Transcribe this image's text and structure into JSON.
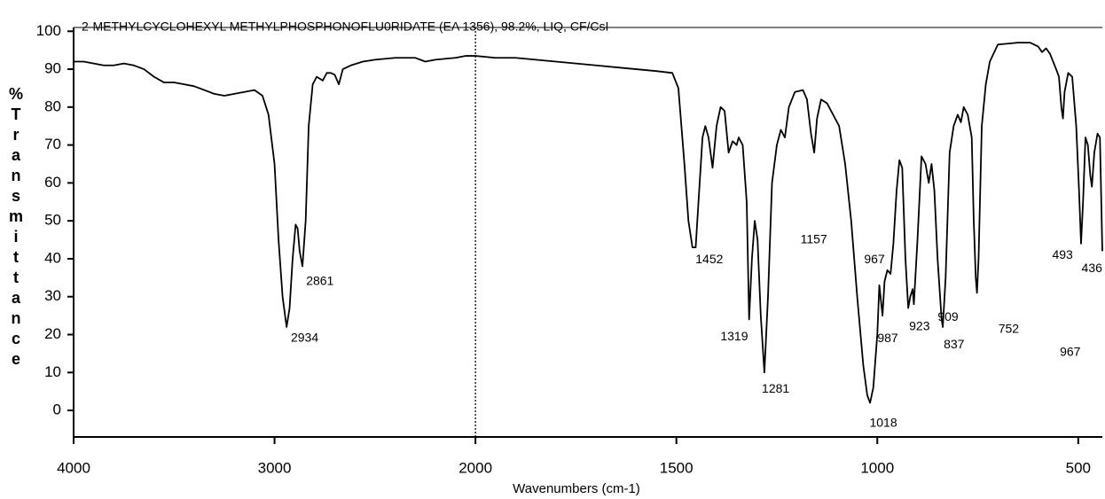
{
  "chart_data": {
    "type": "line",
    "title": "2-METHYLCYCLOHEXYL  METHYLPHOSPHONOFLU0RIDATE (EA 1356), 98.2%, LIQ, CF/CsI",
    "x_label": "Wavenumbers (cm-1)",
    "y_label": "%Transmittance",
    "xlim": [
      4000,
      440
    ],
    "xticks": [
      4000,
      3000,
      2000,
      1500,
      1000,
      500
    ],
    "xbreak": 2000,
    "ylim": [
      -7,
      101
    ],
    "yticks": [
      0,
      10,
      20,
      30,
      40,
      50,
      60,
      70,
      80,
      90,
      100
    ],
    "series": [
      {
        "color": "#000000",
        "x": [
          4000,
          3950,
          3900,
          3850,
          3800,
          3750,
          3700,
          3650,
          3600,
          3550,
          3500,
          3450,
          3400,
          3350,
          3300,
          3250,
          3200,
          3150,
          3100,
          3060,
          3030,
          3000,
          2980,
          2960,
          2940,
          2925,
          2910,
          2895,
          2885,
          2875,
          2861,
          2845,
          2830,
          2810,
          2790,
          2760,
          2740,
          2720,
          2700,
          2680,
          2660,
          2620,
          2560,
          2500,
          2400,
          2300,
          2250,
          2200,
          2100,
          2050,
          2000,
          1950,
          1900,
          1850,
          1800,
          1750,
          1700,
          1650,
          1600,
          1550,
          1510,
          1495,
          1480,
          1470,
          1460,
          1452,
          1445,
          1435,
          1428,
          1420,
          1410,
          1400,
          1390,
          1380,
          1370,
          1360,
          1350,
          1345,
          1335,
          1325,
          1319,
          1312,
          1305,
          1298,
          1290,
          1281,
          1272,
          1262,
          1250,
          1240,
          1230,
          1220,
          1205,
          1185,
          1175,
          1165,
          1157,
          1150,
          1140,
          1125,
          1110,
          1095,
          1080,
          1065,
          1050,
          1035,
          1025,
          1018,
          1010,
          1000,
          995,
          990,
          987,
          982,
          975,
          967,
          960,
          952,
          945,
          938,
          930,
          923,
          918,
          912,
          909,
          900,
          890,
          880,
          872,
          865,
          858,
          850,
          840,
          837,
          830,
          820,
          810,
          800,
          792,
          785,
          775,
          765,
          760,
          755,
          752,
          748,
          740,
          730,
          720,
          700,
          650,
          620,
          600,
          590,
          580,
          570,
          555,
          548,
          542,
          538,
          534,
          525,
          515,
          505,
          498,
          493,
          488,
          482,
          476,
          470,
          466,
          460,
          452,
          446,
          440
        ],
        "values": [
          92,
          92,
          91.5,
          91,
          91,
          91.5,
          91,
          90,
          88,
          86.5,
          86.5,
          86,
          85.5,
          84.5,
          83.5,
          83,
          83.5,
          84,
          84.5,
          83,
          78,
          65,
          45,
          30,
          22,
          27,
          40,
          49,
          48,
          42,
          38,
          50,
          75,
          86,
          88,
          87,
          89,
          89,
          88.5,
          86,
          90,
          91,
          92,
          92.5,
          93,
          93,
          92,
          92.5,
          93,
          93.5,
          93.5,
          93,
          93,
          92.5,
          92,
          91.5,
          91,
          90.5,
          90,
          89.5,
          89,
          85,
          65,
          50,
          43,
          43,
          55,
          72,
          75,
          72,
          64,
          75,
          80,
          79,
          68,
          71,
          70,
          72,
          70,
          55,
          24,
          40,
          50,
          45,
          25,
          10,
          30,
          60,
          70,
          74,
          72,
          80,
          84,
          84.5,
          82,
          73,
          68,
          77,
          82,
          81,
          78,
          75,
          65,
          50,
          30,
          12,
          4,
          2,
          6,
          20,
          33,
          28,
          25,
          34,
          37,
          36,
          44,
          58,
          66,
          64,
          40,
          27,
          30,
          32,
          28,
          45,
          67,
          65,
          60,
          65,
          58,
          40,
          24,
          22,
          35,
          68,
          75,
          78,
          76,
          80,
          78,
          72,
          50,
          35,
          31,
          40,
          75,
          86,
          92,
          96.5,
          97,
          97,
          96,
          94.5,
          95.5,
          94,
          90,
          88,
          80,
          77,
          84,
          89,
          88,
          75,
          58,
          44,
          55,
          72,
          70,
          62,
          59,
          68,
          73,
          72,
          42
        ]
      }
    ],
    "annotations": [
      {
        "text": "2934",
        "x": 2850,
        "y": 19
      },
      {
        "text": "2861",
        "x": 2774,
        "y": 34
      },
      {
        "text": "1452",
        "x": 1418,
        "y": 39.7
      },
      {
        "text": "1319",
        "x": 1356,
        "y": 19.4
      },
      {
        "text": "1281",
        "x": 1253,
        "y": 5.6
      },
      {
        "text": "1157",
        "x": 1158,
        "y": 45
      },
      {
        "text": "1018",
        "x": 985,
        "y": -3.5
      },
      {
        "text": "967",
        "x": 1007,
        "y": 39.7
      },
      {
        "text": "987",
        "x": 974,
        "y": 18.9
      },
      {
        "text": "923",
        "x": 895,
        "y": 22
      },
      {
        "text": "909",
        "x": 824,
        "y": 24.5
      },
      {
        "text": "837",
        "x": 809,
        "y": 17.3
      },
      {
        "text": "752",
        "x": 673,
        "y": 21.3
      },
      {
        "text": "493",
        "x": 539,
        "y": 40.9
      },
      {
        "text": "436",
        "x": 466,
        "y": 37.4
      },
      {
        "text": "967",
        "x": 520,
        "y": 15.2
      }
    ]
  }
}
